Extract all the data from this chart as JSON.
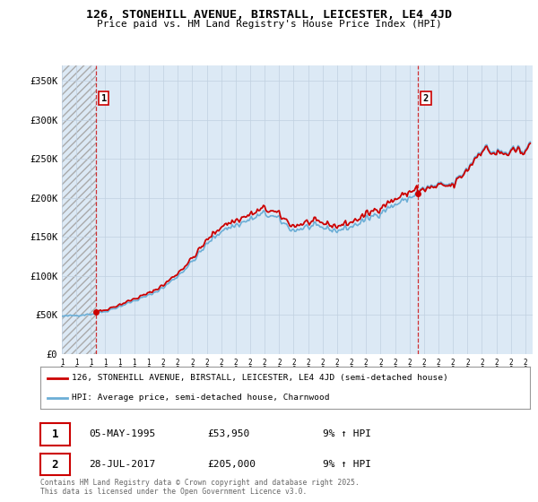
{
  "title": "126, STONEHILL AVENUE, BIRSTALL, LEICESTER, LE4 4JD",
  "subtitle": "Price paid vs. HM Land Registry's House Price Index (HPI)",
  "ylim": [
    0,
    370000
  ],
  "yticks": [
    0,
    50000,
    100000,
    150000,
    200000,
    250000,
    300000,
    350000
  ],
  "ytick_labels": [
    "£0",
    "£50K",
    "£100K",
    "£150K",
    "£200K",
    "£250K",
    "£300K",
    "£350K"
  ],
  "line1_color": "#cc0000",
  "line2_color": "#6baed6",
  "annotation1_date": "05-MAY-1995",
  "annotation1_price": "£53,950",
  "annotation1_hpi": "9% ↑ HPI",
  "annotation2_date": "28-JUL-2017",
  "annotation2_price": "£205,000",
  "annotation2_hpi": "9% ↑ HPI",
  "legend_line1": "126, STONEHILL AVENUE, BIRSTALL, LEICESTER, LE4 4JD (semi-detached house)",
  "legend_line2": "HPI: Average price, semi-detached house, Charnwood",
  "footer": "Contains HM Land Registry data © Crown copyright and database right 2025.\nThis data is licensed under the Open Government Licence v3.0.",
  "bg_color": "#ffffff",
  "plot_bg_color": "#dce9f5",
  "sale1_year": 1995.35,
  "sale2_year": 2017.58,
  "xmin": 1993.0,
  "xmax": 2025.5,
  "sale1_price": 53950,
  "sale2_price": 205000
}
